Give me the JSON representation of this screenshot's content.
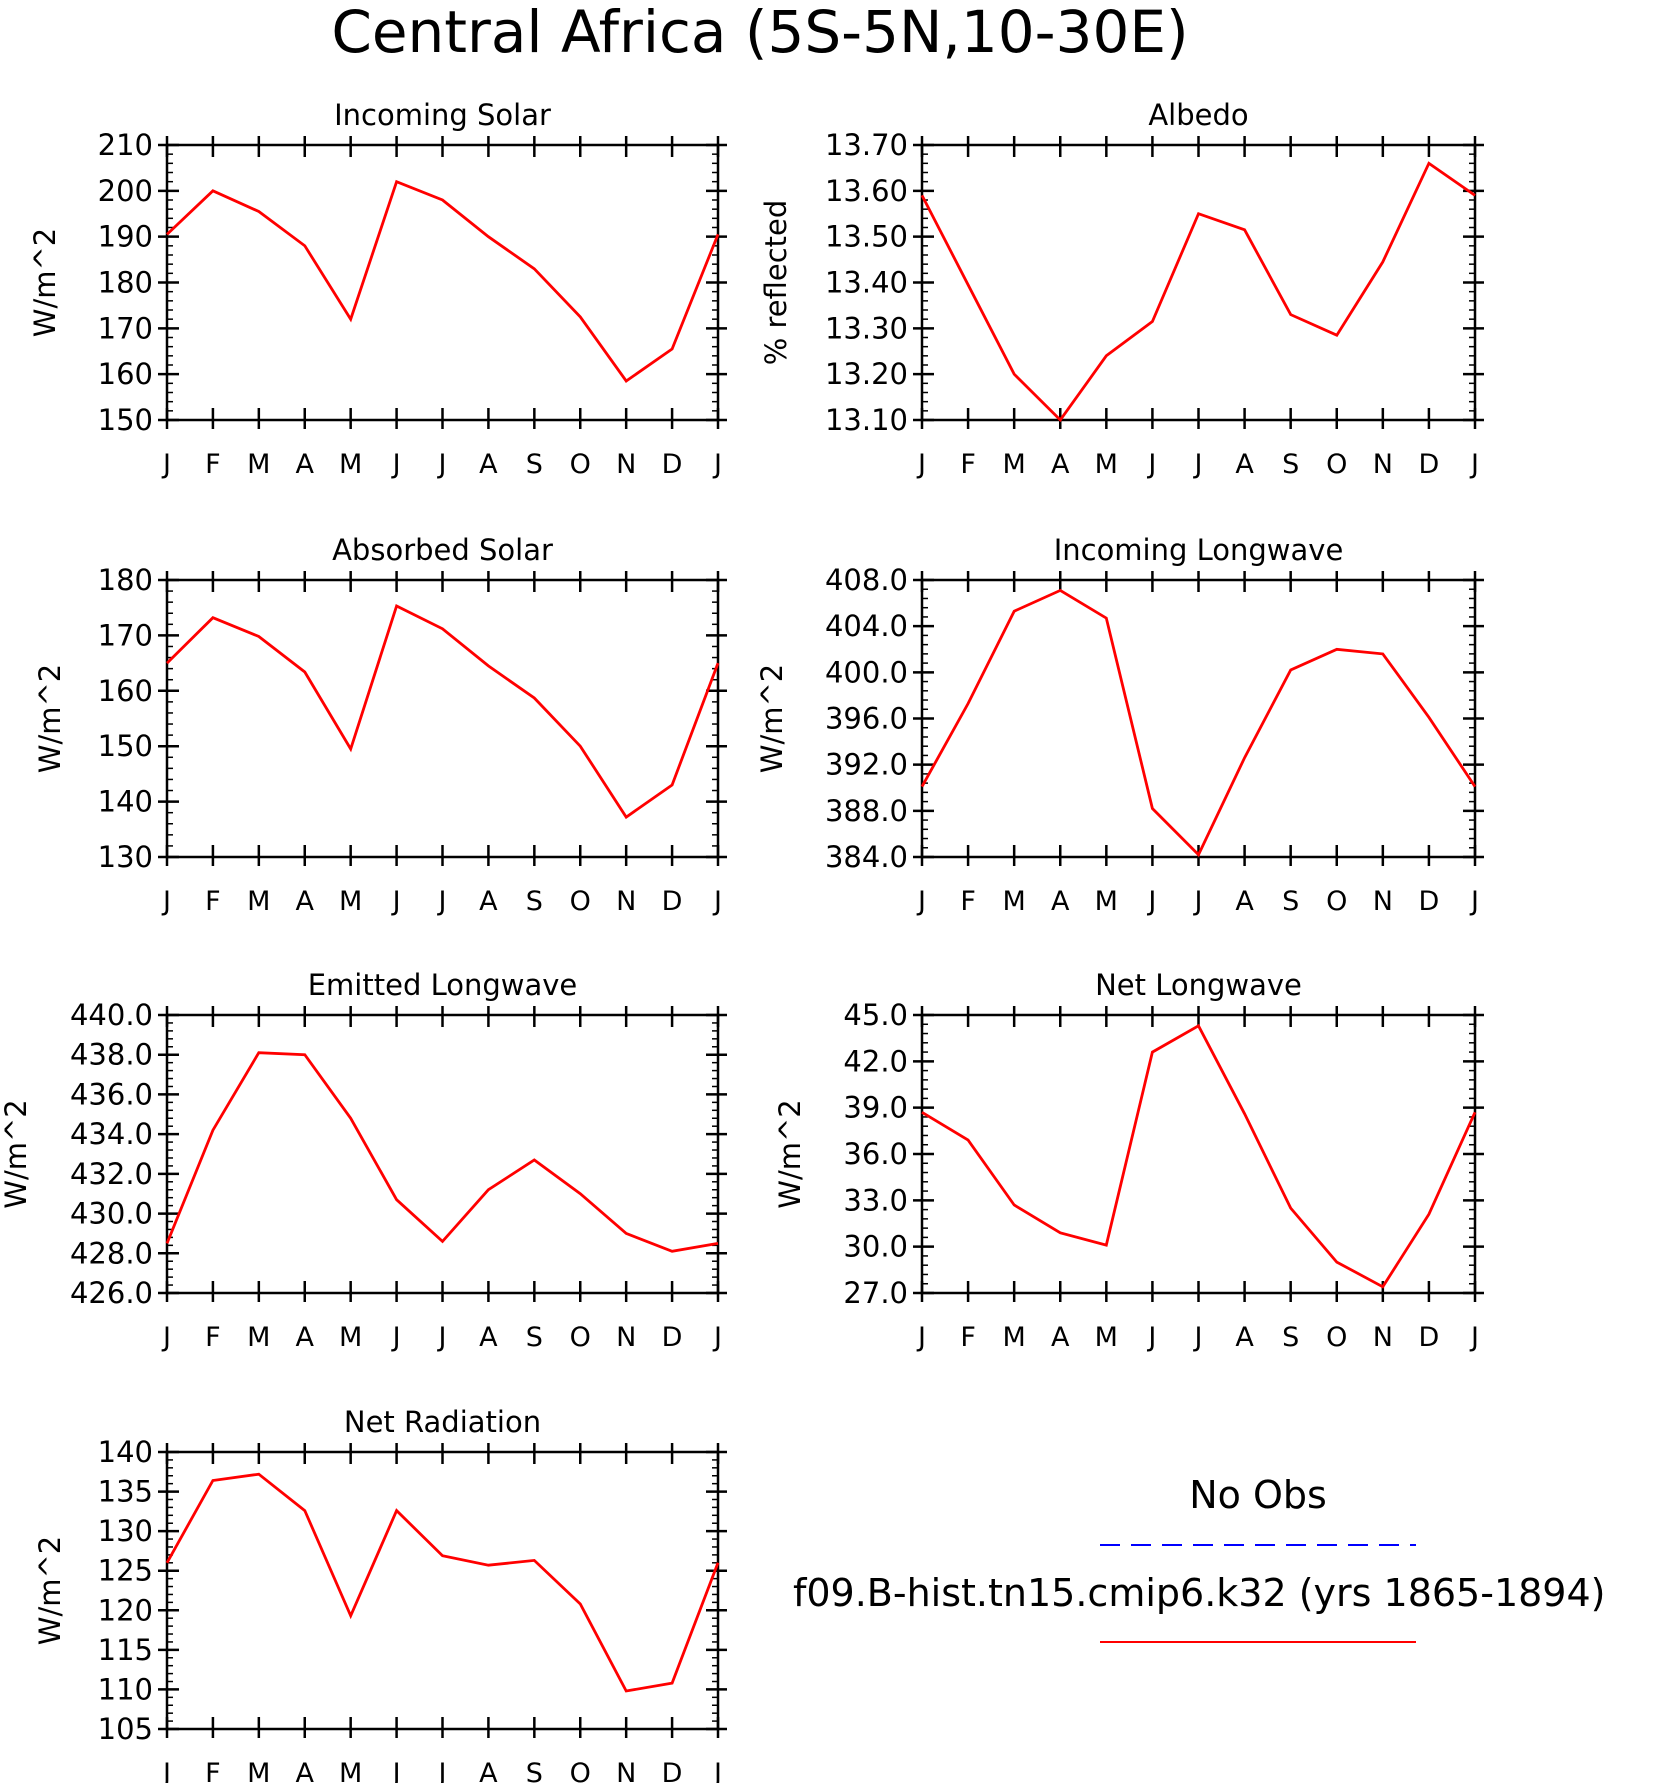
{
  "title": "Central Africa (5S-5N,10-30E)",
  "legend": {
    "obs_label": "No Obs",
    "obs_color": "#0000ff",
    "model_label": "f09.B-hist.tn15.cmip6.k32 (yrs 1865-1894)",
    "model_color": "#ff0000"
  },
  "chart_data": [
    {
      "type": "line",
      "title": "Incoming Solar",
      "ylabel": "W/m^2",
      "categories": [
        "J",
        "F",
        "M",
        "A",
        "M",
        "J",
        "J",
        "A",
        "S",
        "O",
        "N",
        "D",
        "J"
      ],
      "ylim": [
        150,
        210
      ],
      "yticks": [
        "150",
        "160",
        "170",
        "180",
        "190",
        "200",
        "210"
      ],
      "ytick_step": 10,
      "yminor_step": 2,
      "series": [
        {
          "values": [
            190.5,
            200,
            195.5,
            188,
            172,
            202,
            198,
            190,
            183,
            172.5,
            158.5,
            165.5,
            190.5
          ]
        }
      ]
    },
    {
      "type": "line",
      "title": "Albedo",
      "ylabel": "% reflected",
      "categories": [
        "J",
        "F",
        "M",
        "A",
        "M",
        "J",
        "J",
        "A",
        "S",
        "O",
        "N",
        "D",
        "J"
      ],
      "ylim": [
        13.1,
        13.7
      ],
      "yticks": [
        "13.10",
        "13.20",
        "13.30",
        "13.40",
        "13.50",
        "13.60",
        "13.70"
      ],
      "ytick_step": 0.1,
      "yminor_step": 0.02,
      "series": [
        {
          "values": [
            13.59,
            13.395,
            13.2,
            13.1,
            13.24,
            13.315,
            13.55,
            13.515,
            13.33,
            13.285,
            13.445,
            13.66,
            13.59
          ]
        }
      ]
    },
    {
      "type": "line",
      "title": "Absorbed Solar",
      "ylabel": "W/m^2",
      "categories": [
        "J",
        "F",
        "M",
        "A",
        "M",
        "J",
        "J",
        "A",
        "S",
        "O",
        "N",
        "D",
        "J"
      ],
      "ylim": [
        130,
        180
      ],
      "yticks": [
        "130",
        "140",
        "150",
        "160",
        "170",
        "180"
      ],
      "ytick_step": 10,
      "yminor_step": 2,
      "series": [
        {
          "values": [
            165,
            173.2,
            169.8,
            163.4,
            149.5,
            175.3,
            171.2,
            164.5,
            158.7,
            150,
            137.2,
            143,
            165
          ]
        }
      ]
    },
    {
      "type": "line",
      "title": "Incoming Longwave",
      "ylabel": "W/m^2",
      "categories": [
        "J",
        "F",
        "M",
        "A",
        "M",
        "J",
        "J",
        "A",
        "S",
        "O",
        "N",
        "D",
        "J"
      ],
      "ylim": [
        384,
        408
      ],
      "yticks": [
        "384.0",
        "388.0",
        "392.0",
        "396.0",
        "400.0",
        "404.0",
        "408.0"
      ],
      "ytick_step": 4,
      "yminor_step": 0.8,
      "series": [
        {
          "values": [
            390.1,
            397.3,
            405.3,
            407.1,
            404.7,
            388.2,
            384.2,
            392.6,
            400.2,
            402,
            401.6,
            396.1,
            390.1
          ]
        }
      ]
    },
    {
      "type": "line",
      "title": "Emitted Longwave",
      "ylabel": "W/m^2",
      "categories": [
        "J",
        "F",
        "M",
        "A",
        "M",
        "J",
        "J",
        "A",
        "S",
        "O",
        "N",
        "D",
        "J"
      ],
      "ylim": [
        426,
        440
      ],
      "yticks": [
        "426.0",
        "428.0",
        "430.0",
        "432.0",
        "434.0",
        "436.0",
        "438.0",
        "440.0"
      ],
      "ytick_step": 2,
      "yminor_step": 0.4,
      "series": [
        {
          "values": [
            428.5,
            434.2,
            438.1,
            438,
            434.8,
            430.7,
            428.6,
            431.2,
            432.7,
            431,
            429,
            428.1,
            428.5
          ]
        }
      ]
    },
    {
      "type": "line",
      "title": "Net Longwave",
      "ylabel": "W/m^2",
      "categories": [
        "J",
        "F",
        "M",
        "A",
        "M",
        "J",
        "J",
        "A",
        "S",
        "O",
        "N",
        "D",
        "J"
      ],
      "ylim": [
        27,
        45
      ],
      "yticks": [
        "27.0",
        "30.0",
        "33.0",
        "36.0",
        "39.0",
        "42.0",
        "45.0"
      ],
      "ytick_step": 3,
      "yminor_step": 0.6,
      "series": [
        {
          "values": [
            38.7,
            36.9,
            32.7,
            30.9,
            30.1,
            42.6,
            44.3,
            38.6,
            32.5,
            29,
            27.4,
            32.1,
            38.7
          ]
        }
      ]
    },
    {
      "type": "line",
      "title": "Net Radiation",
      "ylabel": "W/m^2",
      "categories": [
        "J",
        "F",
        "M",
        "A",
        "M",
        "J",
        "J",
        "A",
        "S",
        "O",
        "N",
        "D",
        "J"
      ],
      "ylim": [
        105,
        140
      ],
      "yticks": [
        "105",
        "110",
        "115",
        "120",
        "125",
        "130",
        "135",
        "140"
      ],
      "ytick_step": 5,
      "yminor_step": 1,
      "series": [
        {
          "values": [
            126,
            136.4,
            137.2,
            132.6,
            119.3,
            132.6,
            126.9,
            125.7,
            126.3,
            120.8,
            109.8,
            110.8,
            126
          ]
        }
      ]
    }
  ]
}
